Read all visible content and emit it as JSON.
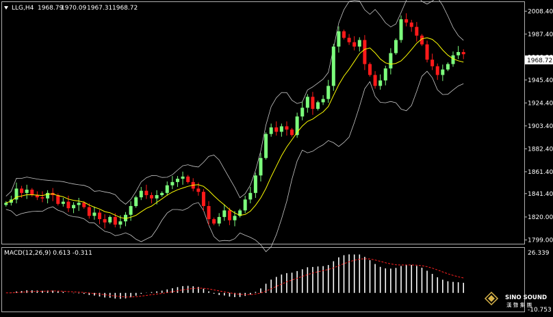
{
  "header": {
    "symbol": "LLG,H4",
    "open": "1968.79",
    "high": "1970.09",
    "low": "1967.31",
    "close": "1968.72"
  },
  "price_tag": "1968.72",
  "macd_label": "MACD(12,26,9) 0.613 -0.311",
  "logo": {
    "name": "SINO SOUND",
    "sub": "漢 聲 集 團"
  },
  "colors": {
    "background": "#000000",
    "bull": "#7cfc7c",
    "bear": "#ff1a1a",
    "ma": "#ffff00",
    "bands": "#c8c8c8",
    "macd_hist": "#ffffff",
    "macd_signal": "#ff2020",
    "axis": "#c0c0c0"
  },
  "chart_data": [
    {
      "type": "candlestick",
      "title": "LLG,H4",
      "ylim": [
        1795.5,
        2015.5
      ],
      "yticks": [
        "2008.40",
        "1987.40",
        "1966.20",
        "1945.40",
        "1924.40",
        "1903.40",
        "1882.40",
        "1861.40",
        "1841.40",
        "1820.00",
        "1799.00"
      ],
      "grid": false,
      "current_price": 1968.72,
      "series": [
        {
          "name": "candles",
          "closes": [
            1833,
            1836,
            1846,
            1842,
            1845,
            1840,
            1838,
            1837,
            1842,
            1840,
            1832,
            1834,
            1828,
            1831,
            1833,
            1829,
            1821,
            1824,
            1818,
            1815,
            1820,
            1813,
            1816,
            1822,
            1830,
            1838,
            1844,
            1840,
            1837,
            1840,
            1842,
            1849,
            1852,
            1855,
            1857,
            1852,
            1846,
            1843,
            1830,
            1818,
            1814,
            1820,
            1826,
            1817,
            1821,
            1826,
            1836,
            1842,
            1858,
            1874,
            1896,
            1902,
            1898,
            1903,
            1900,
            1895,
            1912,
            1920,
            1930,
            1919,
            1925,
            1928,
            1940,
            1976,
            1990,
            1984,
            1980,
            1976,
            1982,
            1960,
            1950,
            1940,
            1945,
            1956,
            1970,
            1982,
            2001,
            1998,
            1994,
            1986,
            1978,
            1964,
            1958,
            1950,
            1955,
            1960,
            1968,
            1971,
            1969
          ]
        },
        {
          "name": "middle-band"
        },
        {
          "name": "upper-band"
        },
        {
          "name": "lower-band"
        }
      ]
    },
    {
      "type": "bar",
      "title": "MACD(12,26,9) 0.613 -0.311",
      "ylim": [
        -10.753,
        26.339
      ],
      "yticks": [
        "26.339",
        "-10.753"
      ],
      "series": [
        {
          "name": "MACD",
          "values": [
            0.613
          ]
        },
        {
          "name": "Signal",
          "values": [
            -0.311
          ]
        }
      ]
    }
  ]
}
